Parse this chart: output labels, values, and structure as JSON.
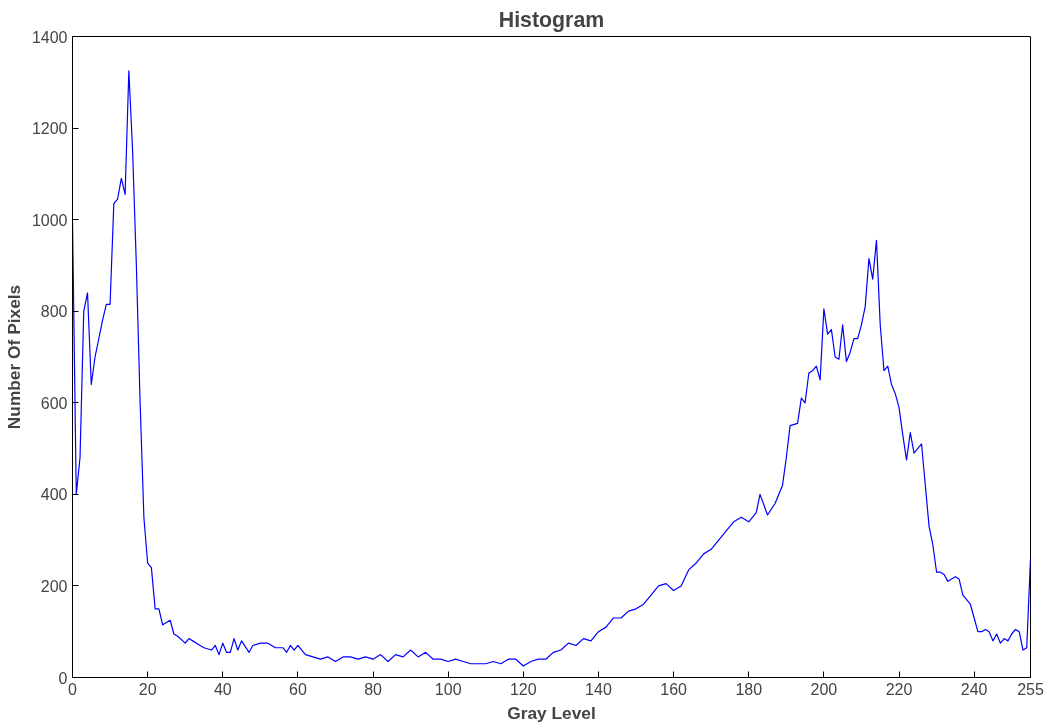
{
  "chart_data": {
    "type": "line",
    "title": "Histogram",
    "xlabel": "Gray Level",
    "ylabel": "Number Of Pixels",
    "xlim": [
      0,
      255
    ],
    "ylim": [
      0,
      1400
    ],
    "xticks": [
      0,
      20,
      40,
      60,
      80,
      100,
      120,
      140,
      160,
      180,
      200,
      220,
      240,
      255
    ],
    "yticks": [
      0,
      200,
      400,
      600,
      800,
      1000,
      1200,
      1400
    ],
    "grid": false,
    "marker": "none",
    "line_style": "solid",
    "series": [
      {
        "color": "#0000ff",
        "x": [
          0,
          1,
          2,
          3,
          4,
          5,
          6,
          8,
          9,
          10,
          11,
          12,
          13,
          14,
          15,
          16,
          17,
          18,
          19,
          20,
          21,
          22,
          23,
          24,
          25,
          26,
          27,
          28,
          30,
          31,
          32,
          34,
          35,
          37,
          38,
          39,
          40,
          41,
          42,
          43,
          44,
          45,
          47,
          48,
          50,
          52,
          54,
          56,
          57,
          58,
          59,
          60,
          62,
          64,
          66,
          68,
          70,
          72,
          74,
          76,
          78,
          80,
          82,
          84,
          86,
          88,
          90,
          92,
          94,
          96,
          98,
          100,
          102,
          104,
          106,
          108,
          110,
          112,
          114,
          116,
          118,
          120,
          122,
          124,
          126,
          128,
          130,
          132,
          134,
          136,
          138,
          140,
          142,
          144,
          146,
          148,
          150,
          152,
          154,
          156,
          158,
          160,
          162,
          164,
          166,
          168,
          170,
          172,
          174,
          176,
          178,
          180,
          182,
          183,
          185,
          187,
          189,
          190,
          191,
          193,
          194,
          195,
          196,
          197,
          198,
          199,
          200,
          201,
          202,
          203,
          204,
          205,
          206,
          207,
          208,
          209,
          210,
          211,
          212,
          213,
          214,
          215,
          216,
          217,
          218,
          219,
          220,
          221,
          222,
          223,
          224,
          226,
          227,
          228,
          229,
          230,
          231,
          232,
          233,
          234,
          235,
          236,
          237,
          238,
          239,
          240,
          241,
          242,
          243,
          244,
          245,
          246,
          247,
          248,
          249,
          250,
          251,
          252,
          253,
          254,
          255
        ],
        "values": [
          1000,
          400,
          480,
          800,
          840,
          640,
          700,
          780,
          815,
          815,
          1035,
          1045,
          1090,
          1055,
          1325,
          1150,
          900,
          600,
          350,
          250,
          240,
          150,
          150,
          115,
          120,
          125,
          95,
          90,
          75,
          85,
          80,
          70,
          65,
          60,
          70,
          50,
          75,
          55,
          55,
          85,
          60,
          80,
          55,
          70,
          75,
          75,
          65,
          65,
          55,
          70,
          60,
          70,
          50,
          45,
          40,
          45,
          35,
          45,
          45,
          40,
          45,
          40,
          50,
          35,
          50,
          45,
          60,
          45,
          55,
          40,
          40,
          35,
          40,
          35,
          30,
          30,
          30,
          35,
          30,
          40,
          40,
          25,
          35,
          40,
          40,
          55,
          60,
          75,
          70,
          85,
          80,
          100,
          110,
          130,
          130,
          145,
          150,
          160,
          180,
          200,
          205,
          190,
          200,
          235,
          250,
          270,
          280,
          300,
          320,
          340,
          350,
          340,
          360,
          400,
          355,
          380,
          420,
          480,
          550,
          555,
          610,
          600,
          665,
          670,
          680,
          650,
          805,
          750,
          760,
          700,
          695,
          770,
          690,
          710,
          740,
          740,
          770,
          810,
          915,
          870,
          955,
          770,
          670,
          680,
          640,
          620,
          590,
          530,
          475,
          535,
          490,
          510,
          420,
          330,
          290,
          230,
          230,
          225,
          210,
          215,
          220,
          215,
          180,
          170,
          160,
          130,
          100,
          100,
          105,
          100,
          80,
          95,
          75,
          85,
          80,
          95,
          105,
          100,
          60,
          65,
          260
        ]
      }
    ]
  }
}
